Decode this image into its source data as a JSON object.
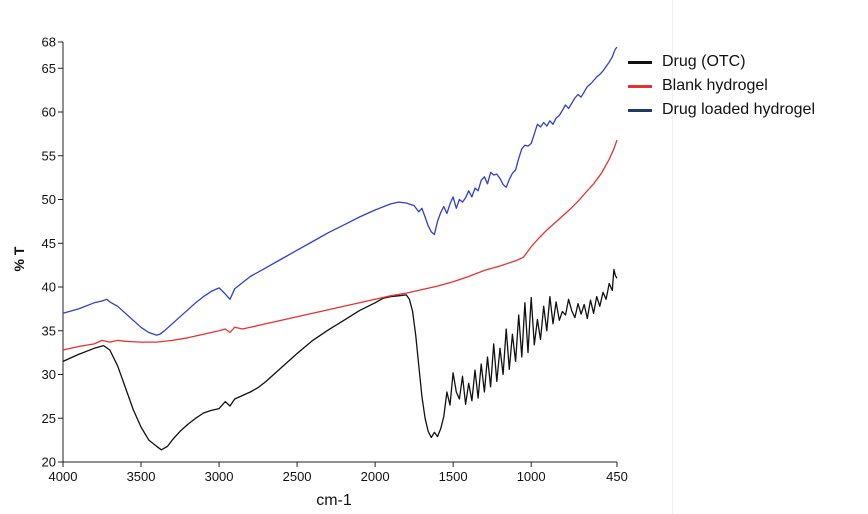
{
  "chart_data": {
    "type": "line",
    "title": "",
    "xlabel": "cm-1",
    "ylabel": "% T",
    "xlim": [
      4000,
      450
    ],
    "ylim": [
      20,
      68
    ],
    "x_reversed": true,
    "x_ticks": [
      4000,
      3500,
      3000,
      2500,
      2000,
      1500,
      1000,
      450
    ],
    "y_ticks": [
      20,
      25,
      30,
      35,
      40,
      45,
      50,
      55,
      60,
      65,
      68
    ],
    "grid": false,
    "legend_position": "right",
    "series": [
      {
        "name": "Drug (OTC)",
        "color": "#111111",
        "x": [
          4000,
          3900,
          3800,
          3740,
          3700,
          3650,
          3600,
          3550,
          3500,
          3450,
          3400,
          3370,
          3330,
          3300,
          3250,
          3200,
          3150,
          3100,
          3050,
          3000,
          2960,
          2930,
          2900,
          2850,
          2800,
          2750,
          2700,
          2600,
          2500,
          2400,
          2300,
          2200,
          2100,
          2000,
          1950,
          1900,
          1850,
          1800,
          1780,
          1760,
          1740,
          1720,
          1700,
          1680,
          1660,
          1640,
          1620,
          1600,
          1580,
          1560,
          1540,
          1520,
          1500,
          1480,
          1460,
          1440,
          1420,
          1400,
          1380,
          1360,
          1340,
          1320,
          1300,
          1280,
          1260,
          1240,
          1220,
          1200,
          1180,
          1160,
          1140,
          1120,
          1100,
          1080,
          1060,
          1040,
          1020,
          1000,
          980,
          960,
          940,
          920,
          900,
          880,
          860,
          840,
          820,
          800,
          780,
          760,
          740,
          720,
          700,
          680,
          660,
          640,
          620,
          600,
          580,
          560,
          540,
          520,
          500,
          480,
          470,
          460,
          450
        ],
        "values": [
          31.5,
          32.3,
          33.0,
          33.3,
          32.8,
          31.0,
          28.5,
          26.0,
          24.0,
          22.5,
          21.8,
          21.4,
          21.8,
          22.5,
          23.5,
          24.3,
          25.0,
          25.6,
          25.9,
          26.1,
          26.9,
          26.4,
          27.2,
          27.6,
          28.0,
          28.5,
          29.2,
          30.8,
          32.4,
          33.9,
          35.1,
          36.2,
          37.3,
          38.2,
          38.7,
          38.9,
          39.0,
          39.1,
          38.6,
          37.2,
          34.5,
          31.0,
          27.5,
          25.0,
          23.5,
          22.8,
          23.4,
          22.9,
          23.8,
          25.2,
          28.0,
          26.5,
          30.2,
          28.0,
          27.2,
          29.8,
          26.6,
          29.0,
          27.0,
          30.5,
          27.3,
          31.2,
          28.0,
          32.0,
          28.6,
          33.5,
          29.2,
          33.0,
          30.0,
          35.2,
          30.6,
          34.6,
          31.5,
          36.8,
          32.0,
          38.2,
          32.5,
          38.8,
          33.4,
          36.3,
          34.0,
          37.8,
          35.0,
          38.9,
          35.8,
          38.3,
          36.2,
          37.2,
          36.8,
          38.6,
          37.3,
          36.5,
          38.1,
          36.9,
          38.0,
          36.4,
          38.5,
          37.0,
          38.9,
          37.8,
          39.4,
          38.6,
          40.4,
          39.6,
          42.0,
          41.3,
          41.0
        ]
      },
      {
        "name": "Blank hydrogel",
        "color": "#e8312f",
        "x": [
          4000,
          3900,
          3800,
          3750,
          3700,
          3650,
          3600,
          3500,
          3400,
          3300,
          3200,
          3100,
          3000,
          2960,
          2930,
          2900,
          2850,
          2800,
          2700,
          2600,
          2500,
          2400,
          2300,
          2200,
          2100,
          2000,
          1900,
          1800,
          1700,
          1600,
          1500,
          1400,
          1300,
          1200,
          1100,
          1050,
          1000,
          950,
          900,
          850,
          800,
          750,
          700,
          650,
          600,
          550,
          500,
          470,
          450
        ],
        "values": [
          32.8,
          33.2,
          33.5,
          33.9,
          33.7,
          33.9,
          33.8,
          33.7,
          33.7,
          33.9,
          34.2,
          34.6,
          35.0,
          35.2,
          34.8,
          35.4,
          35.2,
          35.4,
          35.8,
          36.2,
          36.6,
          37.0,
          37.4,
          37.8,
          38.2,
          38.6,
          39.0,
          39.3,
          39.7,
          40.1,
          40.6,
          41.2,
          41.9,
          42.4,
          43.0,
          43.4,
          44.6,
          45.6,
          46.5,
          47.3,
          48.1,
          48.9,
          49.8,
          50.8,
          51.8,
          53.0,
          54.6,
          55.8,
          56.8
        ]
      },
      {
        "name": "Drug loaded hydrogel",
        "color": "#2f3fcf",
        "x": [
          4000,
          3900,
          3800,
          3750,
          3720,
          3700,
          3650,
          3600,
          3550,
          3500,
          3450,
          3400,
          3380,
          3350,
          3300,
          3250,
          3200,
          3150,
          3100,
          3050,
          3000,
          2960,
          2930,
          2900,
          2850,
          2800,
          2700,
          2600,
          2500,
          2400,
          2300,
          2200,
          2100,
          2000,
          1900,
          1850,
          1800,
          1750,
          1720,
          1700,
          1680,
          1660,
          1640,
          1620,
          1600,
          1580,
          1560,
          1540,
          1520,
          1500,
          1480,
          1460,
          1440,
          1420,
          1400,
          1380,
          1360,
          1340,
          1320,
          1300,
          1280,
          1260,
          1240,
          1220,
          1200,
          1180,
          1160,
          1140,
          1120,
          1100,
          1080,
          1060,
          1040,
          1020,
          1000,
          980,
          960,
          940,
          920,
          900,
          880,
          860,
          840,
          820,
          800,
          780,
          760,
          740,
          720,
          700,
          680,
          660,
          640,
          620,
          600,
          580,
          560,
          540,
          520,
          500,
          480,
          470,
          460,
          450
        ],
        "values": [
          37.0,
          37.5,
          38.2,
          38.4,
          38.6,
          38.3,
          37.8,
          37.0,
          36.2,
          35.4,
          34.8,
          34.5,
          34.6,
          35.0,
          35.8,
          36.6,
          37.4,
          38.2,
          38.9,
          39.5,
          39.9,
          39.2,
          38.6,
          39.8,
          40.5,
          41.2,
          42.2,
          43.2,
          44.2,
          45.2,
          46.2,
          47.1,
          48.0,
          48.8,
          49.5,
          49.7,
          49.6,
          49.3,
          48.6,
          49.0,
          48.0,
          47.0,
          46.3,
          46.0,
          47.5,
          48.5,
          49.2,
          48.4,
          49.5,
          50.3,
          49.0,
          50.0,
          49.7,
          50.2,
          51.0,
          50.3,
          51.3,
          51.0,
          52.2,
          52.6,
          51.8,
          53.1,
          52.8,
          52.9,
          52.4,
          51.7,
          51.4,
          52.3,
          53.0,
          53.4,
          54.7,
          55.8,
          56.2,
          56.1,
          56.4,
          57.5,
          58.6,
          58.3,
          58.8,
          58.4,
          59.0,
          58.6,
          59.3,
          59.6,
          60.2,
          60.8,
          60.4,
          61.0,
          61.6,
          62.0,
          61.7,
          62.3,
          62.9,
          63.2,
          63.6,
          64.0,
          64.3,
          64.7,
          65.2,
          65.7,
          66.3,
          66.8,
          67.2,
          67.4
        ]
      }
    ]
  }
}
